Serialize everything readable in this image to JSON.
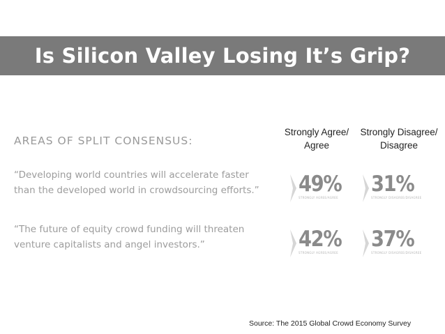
{
  "title": "Is Silicon Valley Losing It’s Grip?",
  "section_heading": "AREAS OF SPLIT CONSENSUS:",
  "quotes": [
    {
      "line1": "“Developing world countries will accelerate faster",
      "line2": "than the developed world in crowdsourcing efforts.”"
    },
    {
      "line1": "“The future of equity crowd funding will threaten",
      "line2": "venture capitalists and angel investors.”"
    }
  ],
  "columns": {
    "agree": {
      "line1": "Strongly Agree/",
      "line2": "Agree"
    },
    "disagree": {
      "line1": "Strongly Disagree/",
      "line2": "Disagree"
    }
  },
  "stats": [
    {
      "agree": "49%",
      "agree_caption": "STRONGLY AGREE/AGREE",
      "disagree": "31%",
      "disagree_caption": "STRONGLY DISAGREE/DISAGREE"
    },
    {
      "agree": "42%",
      "agree_caption": "STRONGLY AGREE/AGREE",
      "disagree": "37%",
      "disagree_caption": "STRONGLY DISAGREE/DISAGREE"
    }
  ],
  "source": "Source:  The 2015 Global Crowd Economy Survey",
  "colors": {
    "title_bar": "#7a7a7a",
    "stat_text": "#8a8a8a",
    "quote_text": "#9c9c9c"
  }
}
